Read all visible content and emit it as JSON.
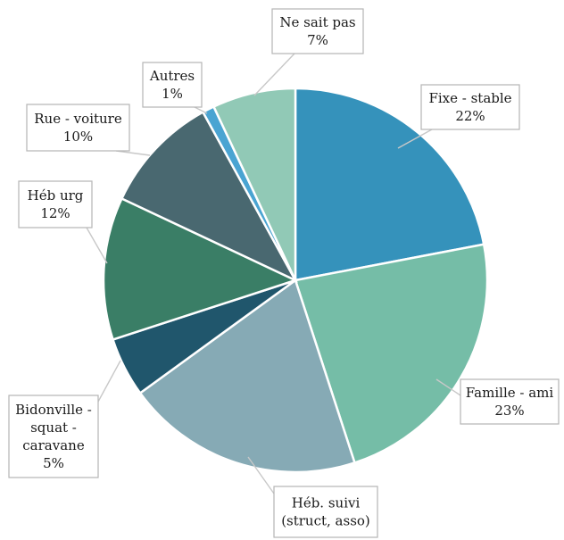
{
  "chart_data": {
    "type": "pie",
    "title": "",
    "start_angle_deg": 0,
    "direction": "clockwise",
    "slices": [
      {
        "label_lines": [
          "Fixe - stable",
          "22%"
        ],
        "value": 22,
        "color": "#3592bb"
      },
      {
        "label_lines": [
          "Famille - ami",
          "23%"
        ],
        "value": 23,
        "color": "#75bda7"
      },
      {
        "label_lines": [
          "Héb. suivi",
          "(struct, asso)"
        ],
        "value": 20,
        "color": "#86aab5"
      },
      {
        "label_lines": [
          "Bidonville -",
          "squat -",
          "caravane",
          "5%"
        ],
        "value": 5,
        "color": "#20566c"
      },
      {
        "label_lines": [
          "Héb urg",
          "12%"
        ],
        "value": 12,
        "color": "#3a7e66"
      },
      {
        "label_lines": [
          "Rue - voiture",
          "10%"
        ],
        "value": 10,
        "color": "#496870"
      },
      {
        "label_lines": [
          "Autres",
          "1%"
        ],
        "value": 1,
        "color": "#4aa4d2"
      },
      {
        "label_lines": [
          "Ne sait pas",
          "7%"
        ],
        "value": 7,
        "color": "#91c9b6"
      }
    ]
  }
}
